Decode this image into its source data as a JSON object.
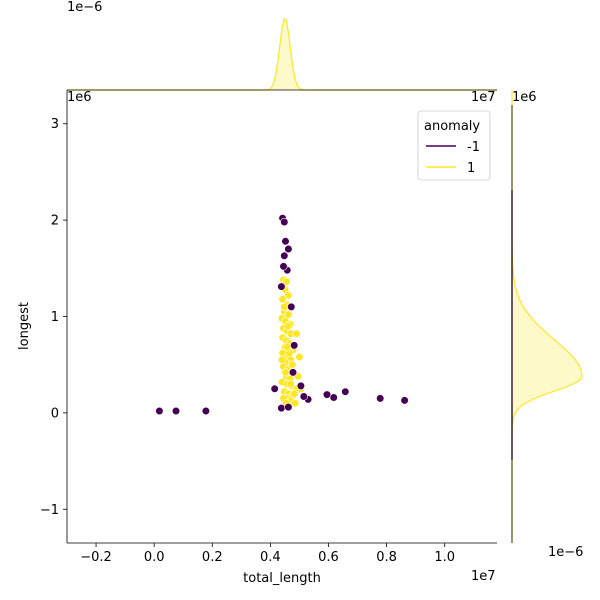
{
  "chart_data": {
    "type": "scatter",
    "title": "",
    "xlabel": "total_length",
    "ylabel": "longest",
    "x_offset_label": "1e7",
    "y_offset_label": "1e6",
    "xlim": [
      -0.3,
      1.18
    ],
    "ylim": [
      -1.35,
      3.35
    ],
    "x_ticks": [
      -0.2,
      0.0,
      0.2,
      0.4,
      0.6,
      0.8,
      1.0
    ],
    "x_tick_labels": [
      "−0.2",
      "0.0",
      "0.2",
      "0.4",
      "0.6",
      "0.8",
      "1.0"
    ],
    "y_ticks": [
      -1,
      0,
      1,
      2,
      3
    ],
    "y_tick_labels": [
      "−1",
      "0",
      "1",
      "2",
      "3"
    ],
    "grid": false,
    "legend": {
      "title": "anomaly",
      "placement": "top-right",
      "entries": [
        "-1",
        "1"
      ]
    },
    "series": [
      {
        "name": "-1",
        "color": "#440154",
        "points": [
          [
            0.018,
            0.02
          ],
          [
            0.075,
            0.02
          ],
          [
            0.178,
            0.02
          ],
          [
            0.442,
            2.02
          ],
          [
            0.448,
            1.98
          ],
          [
            0.452,
            1.78
          ],
          [
            0.462,
            1.7
          ],
          [
            0.448,
            1.63
          ],
          [
            0.458,
            1.48
          ],
          [
            0.445,
            1.52
          ],
          [
            0.438,
            1.31
          ],
          [
            0.472,
            1.1
          ],
          [
            0.415,
            0.25
          ],
          [
            0.438,
            0.05
          ],
          [
            0.462,
            0.06
          ],
          [
            0.53,
            0.14
          ],
          [
            0.515,
            0.17
          ],
          [
            0.595,
            0.19
          ],
          [
            0.618,
            0.16
          ],
          [
            0.658,
            0.22
          ],
          [
            0.778,
            0.15
          ],
          [
            0.862,
            0.13
          ],
          [
            0.505,
            0.28
          ],
          [
            0.478,
            0.42
          ],
          [
            0.482,
            0.7
          ]
        ]
      },
      {
        "name": "1",
        "color": "#fde725",
        "points": [
          [
            0.445,
            1.38
          ],
          [
            0.455,
            1.36
          ],
          [
            0.45,
            1.28
          ],
          [
            0.462,
            1.22
          ],
          [
            0.442,
            1.18
          ],
          [
            0.455,
            1.12
          ],
          [
            0.448,
            1.05
          ],
          [
            0.462,
            1.02
          ],
          [
            0.44,
            0.98
          ],
          [
            0.452,
            0.95
          ],
          [
            0.468,
            0.92
          ],
          [
            0.445,
            0.88
          ],
          [
            0.458,
            0.85
          ],
          [
            0.47,
            0.82
          ],
          [
            0.49,
            0.82
          ],
          [
            0.442,
            0.78
          ],
          [
            0.455,
            0.75
          ],
          [
            0.465,
            0.72
          ],
          [
            0.45,
            0.68
          ],
          [
            0.478,
            0.65
          ],
          [
            0.442,
            0.62
          ],
          [
            0.46,
            0.58
          ],
          [
            0.47,
            0.55
          ],
          [
            0.452,
            0.52
          ],
          [
            0.445,
            0.48
          ],
          [
            0.462,
            0.45
          ],
          [
            0.48,
            0.42
          ],
          [
            0.455,
            0.38
          ],
          [
            0.468,
            0.35
          ],
          [
            0.44,
            0.32
          ],
          [
            0.458,
            0.3
          ],
          [
            0.472,
            0.28
          ],
          [
            0.49,
            0.25
          ],
          [
            0.448,
            0.22
          ],
          [
            0.462,
            0.2
          ],
          [
            0.478,
            0.18
          ],
          [
            0.455,
            0.15
          ],
          [
            0.47,
            0.12
          ],
          [
            0.485,
            0.1
          ],
          [
            0.5,
            0.58
          ],
          [
            0.495,
            0.38
          ],
          [
            0.44,
            0.55
          ],
          [
            0.465,
            0.62
          ],
          [
            0.452,
            0.42
          ],
          [
            0.475,
            0.5
          ],
          [
            0.46,
            0.9
          ],
          [
            0.448,
            1.1
          ],
          [
            0.458,
            0.68
          ],
          [
            0.47,
            0.3
          ],
          [
            0.483,
            0.2
          ],
          [
            0.505,
            0.25
          ],
          [
            0.445,
            0.15
          ],
          [
            0.455,
            0.1
          ]
        ]
      }
    ],
    "top_marginal": {
      "offset_label": "1e−6",
      "series": "1",
      "peak_x": 0.45,
      "sigma": 0.018,
      "color": "#fde725"
    },
    "right_marginal": {
      "offset_label": "1e−6",
      "series": "1",
      "peak_y": 0.38,
      "sigma": 0.28,
      "color": "#fde725"
    }
  }
}
